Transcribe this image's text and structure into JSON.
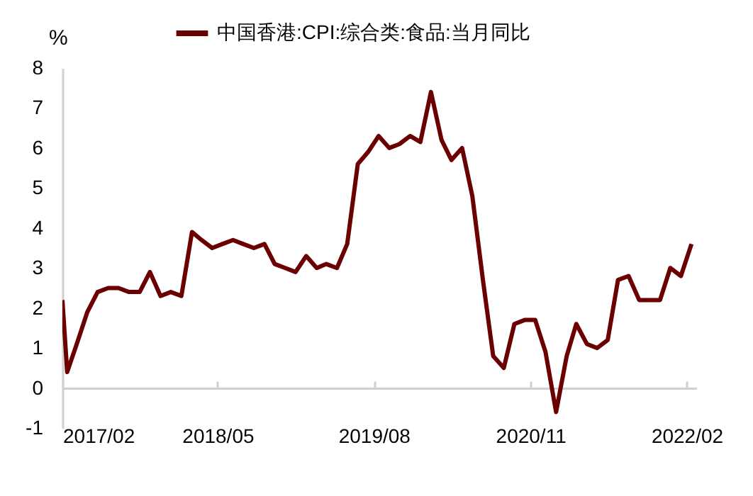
{
  "chart_data": {
    "type": "line",
    "ylabel": "%",
    "legend": "top",
    "x": [
      "2017-02-01",
      "2017-02-15",
      "2017-03-15",
      "2017-04-15",
      "2017-05-15",
      "2017-06-15",
      "2017-07-15",
      "2017-08-15",
      "2017-09-15",
      "2017-10-15",
      "2017-11-15",
      "2017-12-15",
      "2018-01-15",
      "2018-02-15",
      "2018-03-15",
      "2018-04-15",
      "2018-05-15",
      "2018-06-15",
      "2018-07-15",
      "2018-08-15",
      "2018-09-15",
      "2018-10-15",
      "2018-11-15",
      "2018-12-15",
      "2019-01-15",
      "2019-02-15",
      "2019-03-15",
      "2019-04-15",
      "2019-05-15",
      "2019-06-15",
      "2019-07-15",
      "2019-08-15",
      "2019-09-15",
      "2019-10-15",
      "2019-11-15",
      "2019-12-15",
      "2020-01-15",
      "2020-02-15",
      "2020-03-15",
      "2020-04-15",
      "2020-05-15",
      "2020-06-15",
      "2020-07-15",
      "2020-08-15",
      "2020-09-15",
      "2020-10-15",
      "2020-11-15",
      "2020-12-15",
      "2021-01-15",
      "2021-02-15",
      "2021-03-15",
      "2021-04-15",
      "2021-05-15",
      "2021-06-15",
      "2021-07-15",
      "2021-08-15",
      "2021-09-15",
      "2021-10-15",
      "2021-11-15",
      "2021-12-15",
      "2022-01-15",
      "2022-02-15"
    ],
    "series": [
      {
        "name": "中国香港:CPI:综合类:食品:当月同比",
        "color": "#6b0000",
        "values": [
          2.2,
          0.4,
          1.1,
          1.9,
          2.4,
          2.5,
          2.5,
          2.4,
          2.4,
          2.9,
          2.3,
          2.4,
          2.3,
          3.9,
          3.7,
          3.5,
          3.6,
          3.7,
          3.6,
          3.5,
          3.6,
          3.1,
          3.0,
          2.9,
          3.3,
          3.0,
          3.1,
          3.0,
          3.6,
          5.6,
          5.9,
          6.3,
          6.0,
          6.1,
          6.3,
          6.15,
          7.4,
          6.2,
          5.7,
          6.0,
          4.8,
          2.7,
          0.8,
          0.5,
          1.6,
          1.7,
          1.7,
          0.9,
          -0.6,
          0.8,
          1.6,
          1.1,
          1.0,
          1.2,
          2.7,
          2.8,
          2.2,
          2.2,
          2.2,
          3.0,
          2.8,
          3.6
        ]
      }
    ],
    "xlim": [
      "2017-02-01",
      "2022-03-01"
    ],
    "xticks": [
      {
        "value": "2017-02-01",
        "label": "2017/02"
      },
      {
        "value": "2018-05-01",
        "label": "2018/05"
      },
      {
        "value": "2019-08-01",
        "label": "2019/08"
      },
      {
        "value": "2020-11-01",
        "label": "2020/11"
      },
      {
        "value": "2022-02-01",
        "label": "2022/02"
      }
    ],
    "ylim": [
      -1,
      8
    ],
    "yticks": [
      -1,
      0,
      1,
      2,
      3,
      4,
      5,
      6,
      7,
      8
    ],
    "grid": false,
    "marker": "none",
    "line_style": "solid"
  }
}
